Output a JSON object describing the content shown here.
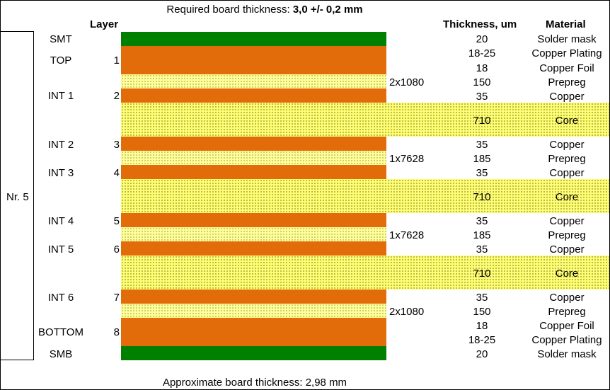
{
  "title": {
    "prefix": "Required board thickness: ",
    "value": "3,0 +/- 0,2 mm"
  },
  "footer": "Approximate board thickness: 2,98 mm",
  "headers": {
    "layer": "Layer",
    "thickness": "Thickness, um",
    "material": "Material"
  },
  "stack_label": "Nr. 5",
  "layer_names": {
    "smt": "SMT",
    "top": "TOP",
    "int1": "INT 1",
    "int2": "INT 2",
    "int3": "INT 3",
    "int4": "INT 4",
    "int5": "INT 5",
    "int6": "INT 6",
    "bottom": "BOTTOM",
    "smb": "SMB"
  },
  "layer_numbers": {
    "top": "1",
    "int1": "2",
    "int2": "3",
    "int3": "4",
    "int4": "5",
    "int5": "6",
    "int6": "7",
    "bottom": "8"
  },
  "prepreg_specs": [
    "2x1080",
    "1x7628",
    "1x7628",
    "2x1080"
  ],
  "rows": [
    {
      "thickness": "20",
      "material": "Solder mask"
    },
    {
      "thickness": "18-25",
      "material": "Copper Plating"
    },
    {
      "thickness": "18",
      "material": "Copper Foil"
    },
    {
      "thickness": "150",
      "material": "Prepreg"
    },
    {
      "thickness": "35",
      "material": "Copper"
    },
    {
      "thickness": "710",
      "material": "Core"
    },
    {
      "thickness": "35",
      "material": "Copper"
    },
    {
      "thickness": "185",
      "material": "Prepreg"
    },
    {
      "thickness": "35",
      "material": "Copper"
    },
    {
      "thickness": "710",
      "material": "Core"
    },
    {
      "thickness": "35",
      "material": "Copper"
    },
    {
      "thickness": "185",
      "material": "Prepreg"
    },
    {
      "thickness": "35",
      "material": "Copper"
    },
    {
      "thickness": "710",
      "material": "Core"
    },
    {
      "thickness": "35",
      "material": "Copper"
    },
    {
      "thickness": "150",
      "material": "Prepreg"
    },
    {
      "thickness": "18",
      "material": "Copper Foil"
    },
    {
      "thickness": "18-25",
      "material": "Copper Plating"
    },
    {
      "thickness": "20",
      "material": "Solder mask"
    }
  ],
  "colors": {
    "copper": "#e36c0a",
    "solder_mask": "#008000",
    "prepreg": "#ffff9a",
    "core": "#ffff73"
  }
}
